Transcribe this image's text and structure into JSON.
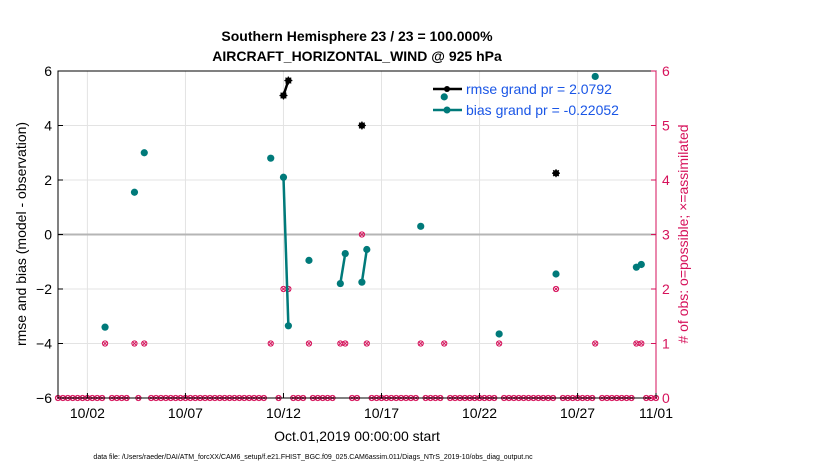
{
  "chart_data": {
    "type": "line",
    "title": "Southern Hemisphere 23 / 23 = 100.000%",
    "subtitle": "AIRCRAFT_HORIZONTAL_WIND @ 925 hPa",
    "xlabel": "Oct.01,2019 00:00:00 start",
    "ylabel_left": "rmse and bias (model - observation)",
    "ylabel_right": "# of obs: o=possible; ×=assimilated",
    "footer": "data file: /Users/raeder/DAI/ATM_forcXX/CAM6_setup/f.e21.FHIST_BGC.f09_025.CAM6assim.011/Diags_NTrS_2019-10/obs_diag_output.nc",
    "xlim": [
      0.5,
      31
    ],
    "x_ticks": [
      2,
      7,
      12,
      17,
      22,
      27,
      32
    ],
    "x_tick_labels": [
      "10/02",
      "10/07",
      "10/12",
      "10/17",
      "10/22",
      "10/27",
      "11/01"
    ],
    "ylim_left": [
      -6,
      6
    ],
    "y_ticks_left": [
      -6,
      -4,
      -2,
      0,
      2,
      4,
      6
    ],
    "ylim_right": [
      0,
      6
    ],
    "y_ticks_right": [
      0,
      1,
      2,
      3,
      4,
      5,
      6
    ],
    "grid": true,
    "legend_position": "top-right",
    "colors": {
      "rmse": "#000000",
      "bias": "#007a7a",
      "obs_count": "#d6125b",
      "zero_line": "#b5b5b5",
      "legend_text": "#1a56e6"
    },
    "series": [
      {
        "name": "rmse grand pr = 2.0792",
        "axis": "left",
        "segments": [
          [
            [
              12.0,
              5.1
            ],
            [
              12.25,
              5.65
            ]
          ],
          [
            [
              16.0,
              4.0
            ]
          ],
          [
            [
              25.9,
              2.25
            ]
          ]
        ]
      },
      {
        "name": "bias grand pr = -0.22052",
        "axis": "left",
        "segments": [
          [
            [
              2.9,
              -3.4
            ]
          ],
          [
            [
              4.4,
              1.55
            ]
          ],
          [
            [
              4.9,
              3.0
            ]
          ],
          [
            [
              11.35,
              2.8
            ]
          ],
          [
            [
              12.0,
              2.1
            ],
            [
              12.25,
              -3.35
            ]
          ],
          [
            [
              13.3,
              -0.95
            ]
          ],
          [
            [
              14.9,
              -1.8
            ],
            [
              15.15,
              -0.7
            ]
          ],
          [
            [
              16.0,
              -1.75
            ],
            [
              16.25,
              -0.55
            ]
          ],
          [
            [
              19.0,
              0.3
            ]
          ],
          [
            [
              20.2,
              5.05
            ]
          ],
          [
            [
              23.0,
              -3.65
            ]
          ],
          [
            [
              25.9,
              -1.45
            ]
          ],
          [
            [
              27.9,
              5.8
            ]
          ],
          [
            [
              30.0,
              -1.2
            ],
            [
              30.25,
              -1.1
            ]
          ]
        ]
      },
      {
        "name": "obs possible/assimilated",
        "axis": "right",
        "points": [
          [
            0.5,
            0
          ],
          [
            0.75,
            0
          ],
          [
            1.0,
            0
          ],
          [
            1.25,
            0
          ],
          [
            1.5,
            0
          ],
          [
            1.75,
            0
          ],
          [
            2.0,
            0
          ],
          [
            2.25,
            0
          ],
          [
            2.5,
            0
          ],
          [
            2.75,
            0
          ],
          [
            2.9,
            1
          ],
          [
            3.25,
            0
          ],
          [
            3.5,
            0
          ],
          [
            3.75,
            0
          ],
          [
            4.0,
            0
          ],
          [
            4.4,
            1
          ],
          [
            4.6,
            0
          ],
          [
            4.9,
            1
          ],
          [
            5.25,
            0
          ],
          [
            5.5,
            0
          ],
          [
            5.75,
            0
          ],
          [
            6.0,
            0
          ],
          [
            6.25,
            0
          ],
          [
            6.5,
            0
          ],
          [
            6.75,
            0
          ],
          [
            7.0,
            0
          ],
          [
            7.25,
            0
          ],
          [
            7.5,
            0
          ],
          [
            7.75,
            0
          ],
          [
            8.0,
            0
          ],
          [
            8.25,
            0
          ],
          [
            8.5,
            0
          ],
          [
            8.75,
            0
          ],
          [
            9.0,
            0
          ],
          [
            9.25,
            0
          ],
          [
            9.5,
            0
          ],
          [
            9.75,
            0
          ],
          [
            10.0,
            0
          ],
          [
            10.25,
            0
          ],
          [
            10.5,
            0
          ],
          [
            10.75,
            0
          ],
          [
            11.0,
            0
          ],
          [
            11.35,
            1
          ],
          [
            11.75,
            0
          ],
          [
            12.0,
            2
          ],
          [
            12.25,
            2
          ],
          [
            12.5,
            0
          ],
          [
            12.75,
            0
          ],
          [
            13.0,
            0
          ],
          [
            13.3,
            1
          ],
          [
            13.5,
            0
          ],
          [
            13.75,
            0
          ],
          [
            14.0,
            0
          ],
          [
            14.25,
            0
          ],
          [
            14.5,
            0
          ],
          [
            14.9,
            1
          ],
          [
            15.15,
            1
          ],
          [
            15.5,
            0
          ],
          [
            15.75,
            0
          ],
          [
            16.0,
            3
          ],
          [
            16.25,
            1
          ],
          [
            16.5,
            0
          ],
          [
            16.75,
            0
          ],
          [
            17.0,
            0
          ],
          [
            17.25,
            0
          ],
          [
            17.5,
            0
          ],
          [
            17.75,
            0
          ],
          [
            18.0,
            0
          ],
          [
            18.25,
            0
          ],
          [
            18.5,
            0
          ],
          [
            18.75,
            0
          ],
          [
            19.0,
            1
          ],
          [
            19.25,
            0
          ],
          [
            19.5,
            0
          ],
          [
            19.75,
            0
          ],
          [
            20.0,
            0
          ],
          [
            20.2,
            1
          ],
          [
            20.5,
            0
          ],
          [
            20.75,
            0
          ],
          [
            21.0,
            0
          ],
          [
            21.25,
            0
          ],
          [
            21.5,
            0
          ],
          [
            21.75,
            0
          ],
          [
            22.0,
            0
          ],
          [
            22.25,
            0
          ],
          [
            22.5,
            0
          ],
          [
            22.75,
            0
          ],
          [
            23.0,
            1
          ],
          [
            23.25,
            0
          ],
          [
            23.5,
            0
          ],
          [
            23.75,
            0
          ],
          [
            24.0,
            0
          ],
          [
            24.25,
            0
          ],
          [
            24.5,
            0
          ],
          [
            24.75,
            0
          ],
          [
            25.0,
            0
          ],
          [
            25.25,
            0
          ],
          [
            25.5,
            0
          ],
          [
            25.75,
            0
          ],
          [
            25.9,
            2
          ],
          [
            26.25,
            0
          ],
          [
            26.5,
            0
          ],
          [
            26.75,
            0
          ],
          [
            27.0,
            0
          ],
          [
            27.25,
            0
          ],
          [
            27.5,
            0
          ],
          [
            27.75,
            0
          ],
          [
            27.9,
            1
          ],
          [
            28.25,
            0
          ],
          [
            28.5,
            0
          ],
          [
            28.75,
            0
          ],
          [
            29.0,
            0
          ],
          [
            29.25,
            0
          ],
          [
            29.5,
            0
          ],
          [
            29.75,
            0
          ],
          [
            30.0,
            1
          ],
          [
            30.25,
            1
          ],
          [
            30.5,
            0
          ],
          [
            30.75,
            0
          ],
          [
            31.0,
            0
          ]
        ]
      }
    ]
  }
}
